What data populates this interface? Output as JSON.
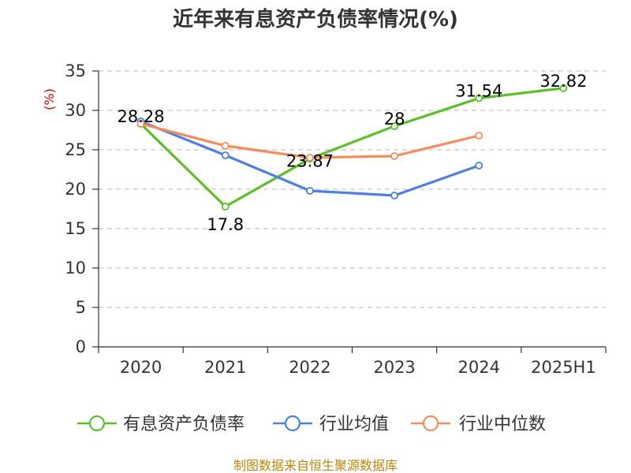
{
  "chart_data": {
    "type": "line",
    "title": "近年来有息资产负债率情况(%)",
    "ylabel": "(%)",
    "xlabel": "",
    "categories": [
      "2020",
      "2021",
      "2022",
      "2023",
      "2024",
      "2025H1"
    ],
    "ylim": [
      0,
      35
    ],
    "yticks": [
      0,
      5,
      10,
      15,
      20,
      25,
      30,
      35
    ],
    "grid": "horizontal-dashed",
    "legend_position": "bottom",
    "series": [
      {
        "name": "有息资产负债率",
        "color": "#5cbf2a",
        "values": [
          28.28,
          17.8,
          23.87,
          28,
          31.54,
          32.82
        ],
        "labels": [
          "28.28",
          "17.8",
          "23.87",
          "28",
          "31.54",
          "32.82"
        ]
      },
      {
        "name": "行业均值",
        "color": "#4f7fdc",
        "values": [
          28.6,
          24.3,
          19.8,
          19.2,
          23.0,
          null
        ]
      },
      {
        "name": "行业中位数",
        "color": "#f48c5c",
        "values": [
          28.3,
          25.5,
          24.0,
          24.2,
          26.8,
          null
        ]
      }
    ]
  },
  "source": "制图数据来自恒生聚源数据库"
}
